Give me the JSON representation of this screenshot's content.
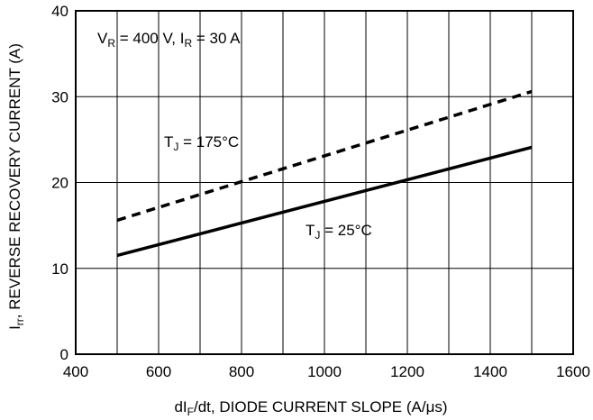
{
  "chart_data": {
    "type": "line",
    "xlabel": "dI_F/dt, DIODE CURRENT SLOPE (A/μs)",
    "ylabel": "I_rr, REVERSE RECOVERY CURRENT (A)",
    "xlim": [
      400,
      1600
    ],
    "ylim": [
      0,
      40
    ],
    "x_ticks": [
      400,
      600,
      800,
      1000,
      1200,
      1400,
      1600
    ],
    "y_ticks": [
      0,
      10,
      20,
      30,
      40
    ],
    "x_tick_labels": [
      "400",
      "600",
      "800",
      "1000",
      "1200",
      "1400",
      "1600"
    ],
    "y_tick_labels": [
      "0",
      "10",
      "20",
      "30",
      "40"
    ],
    "grid": {
      "vertical_step": 100,
      "horizontal_step": 10
    },
    "series": [
      {
        "name": "T_J = 175°C",
        "style": "dashed",
        "x": [
          500,
          1500
        ],
        "y": [
          15.6,
          30.6
        ]
      },
      {
        "name": "T_J = 25°C",
        "style": "solid",
        "x": [
          500,
          1500
        ],
        "y": [
          11.5,
          24.1
        ]
      }
    ],
    "annotations": {
      "conditions": "V_R = 400 V, I_R = 30 A",
      "t175": "T_J = 175°C",
      "t25": "T_J = 25°C"
    }
  }
}
